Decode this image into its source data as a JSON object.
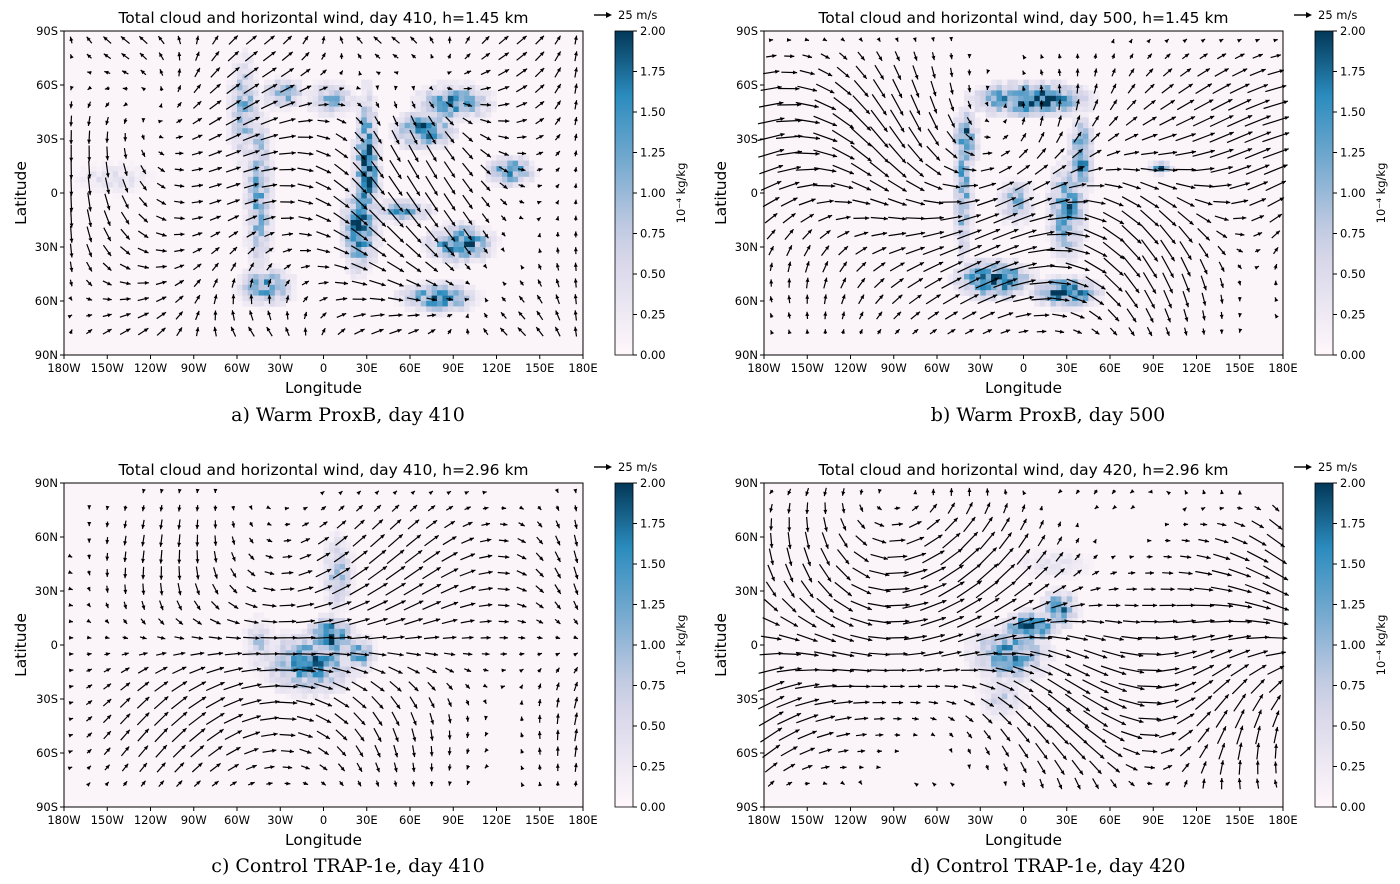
{
  "figure": {
    "colormap": {
      "low": "#fff7fb",
      "mid1": "#d0d1e6",
      "mid2": "#74a9cf",
      "mid3": "#2b8cbe",
      "high": "#023858"
    },
    "arrow_color": "#000000",
    "longitude_ticks": [
      "180W",
      "150W",
      "120W",
      "90W",
      "60W",
      "30W",
      "0",
      "30E",
      "60E",
      "90E",
      "120E",
      "150E",
      "180E"
    ],
    "colorbar_ticks": [
      "0.00",
      "0.25",
      "0.50",
      "0.75",
      "1.00",
      "1.25",
      "1.50",
      "1.75",
      "2.00"
    ],
    "colorbar_label": "10⁻⁴ kg/kg",
    "xlabel": "Longitude",
    "ylabel": "Latitude",
    "key_label": "25 m/s"
  },
  "chart_data": [
    {
      "type": "heatmap",
      "title": "Total cloud and horizontal wind, day 410, h=1.45 km",
      "caption": "a) Warm ProxB, day 410",
      "lat_ticks": [
        "90S",
        "60S",
        "30S",
        "0",
        "30N",
        "60N",
        "90N"
      ],
      "xlim": [
        -180,
        180
      ],
      "ylim": [
        -90,
        90
      ],
      "clim": [
        0,
        2.0
      ],
      "cloud_blobs": [
        {
          "lon": -55,
          "lat": -45,
          "w": 10,
          "h": 28,
          "v": 1.1
        },
        {
          "lon": -45,
          "lat": 0,
          "w": 9,
          "h": 45,
          "v": 1.2
        },
        {
          "lon": -40,
          "lat": 52,
          "w": 18,
          "h": 10,
          "v": 1.3
        },
        {
          "lon": -28,
          "lat": -55,
          "w": 14,
          "h": 8,
          "v": 1.2
        },
        {
          "lon": 5,
          "lat": -52,
          "w": 16,
          "h": 9,
          "v": 1.0
        },
        {
          "lon": 30,
          "lat": -12,
          "w": 8,
          "h": 40,
          "v": 1.9
        },
        {
          "lon": 25,
          "lat": 20,
          "w": 12,
          "h": 22,
          "v": 1.7
        },
        {
          "lon": 70,
          "lat": -35,
          "w": 20,
          "h": 10,
          "v": 1.6
        },
        {
          "lon": 90,
          "lat": -50,
          "w": 25,
          "h": 10,
          "v": 1.4
        },
        {
          "lon": 95,
          "lat": 28,
          "w": 22,
          "h": 10,
          "v": 1.7
        },
        {
          "lon": 80,
          "lat": 58,
          "w": 25,
          "h": 8,
          "v": 1.5
        },
        {
          "lon": 130,
          "lat": -12,
          "w": 15,
          "h": 8,
          "v": 1.5
        },
        {
          "lon": 55,
          "lat": 10,
          "w": 20,
          "h": 6,
          "v": 1.2
        },
        {
          "lon": -145,
          "lat": -8,
          "w": 25,
          "h": 8,
          "v": 0.45
        }
      ],
      "wind_regime": "warm-1"
    },
    {
      "type": "heatmap",
      "title": "Total cloud and horizontal wind, day 500, h=1.45 km",
      "caption": "b) Warm ProxB, day 500",
      "lat_ticks": [
        "90S",
        "60S",
        "30S",
        "0",
        "30N",
        "60N",
        "90N"
      ],
      "xlim": [
        -180,
        180
      ],
      "ylim": [
        -90,
        90
      ],
      "clim": [
        0,
        2.0
      ],
      "cloud_blobs": [
        {
          "lon": 5,
          "lat": -52,
          "w": 38,
          "h": 9,
          "v": 1.9
        },
        {
          "lon": -40,
          "lat": -30,
          "w": 8,
          "h": 15,
          "v": 1.6
        },
        {
          "lon": -42,
          "lat": 0,
          "w": 6,
          "h": 35,
          "v": 1.3
        },
        {
          "lon": -20,
          "lat": 48,
          "w": 25,
          "h": 10,
          "v": 1.9
        },
        {
          "lon": 30,
          "lat": 55,
          "w": 22,
          "h": 8,
          "v": 1.8
        },
        {
          "lon": 40,
          "lat": -20,
          "w": 8,
          "h": 20,
          "v": 1.7
        },
        {
          "lon": 30,
          "lat": 10,
          "w": 12,
          "h": 25,
          "v": 1.5
        },
        {
          "lon": -5,
          "lat": 5,
          "w": 12,
          "h": 12,
          "v": 1.0
        },
        {
          "lon": 95,
          "lat": -14,
          "w": 8,
          "h": 3,
          "v": 1.6
        }
      ],
      "wind_regime": "warm-2"
    },
    {
      "type": "heatmap",
      "title": "Total cloud and horizontal wind, day 410, h=2.96 km",
      "caption": "c) Control TRAP-1e, day 410",
      "lat_ticks": [
        "90N",
        "60N",
        "30N",
        "0",
        "30S",
        "60S",
        "90S"
      ],
      "xlim": [
        -180,
        180
      ],
      "ylim": [
        -90,
        90
      ],
      "clim": [
        0,
        2.0
      ],
      "cloud_blobs": [
        {
          "lon": -10,
          "lat": 10,
          "w": 30,
          "h": 16,
          "v": 1.5
        },
        {
          "lon": 5,
          "lat": -5,
          "w": 15,
          "h": 10,
          "v": 1.8
        },
        {
          "lon": 10,
          "lat": -40,
          "w": 10,
          "h": 20,
          "v": 0.9
        },
        {
          "lon": -45,
          "lat": 0,
          "w": 10,
          "h": 15,
          "v": 0.7
        },
        {
          "lon": 25,
          "lat": 5,
          "w": 10,
          "h": 10,
          "v": 1.3
        }
      ],
      "wind_regime": "control-1"
    },
    {
      "type": "heatmap",
      "title": "Total cloud and horizontal wind, day 420, h=2.96 km",
      "caption": "d) Control TRAP-1e, day 420",
      "lat_ticks": [
        "90N",
        "60N",
        "30N",
        "0",
        "30S",
        "60S",
        "90S"
      ],
      "xlim": [
        -180,
        180
      ],
      "ylim": [
        -90,
        90
      ],
      "clim": [
        0,
        2.0
      ],
      "cloud_blobs": [
        {
          "lon": -10,
          "lat": 5,
          "w": 25,
          "h": 15,
          "v": 1.4
        },
        {
          "lon": 5,
          "lat": -10,
          "w": 18,
          "h": 8,
          "v": 1.9
        },
        {
          "lon": 25,
          "lat": -20,
          "w": 12,
          "h": 10,
          "v": 1.5
        },
        {
          "lon": -15,
          "lat": 30,
          "w": 15,
          "h": 10,
          "v": 0.7
        },
        {
          "lon": 20,
          "lat": -45,
          "w": 30,
          "h": 8,
          "v": 0.35
        }
      ],
      "wind_regime": "control-2"
    }
  ]
}
